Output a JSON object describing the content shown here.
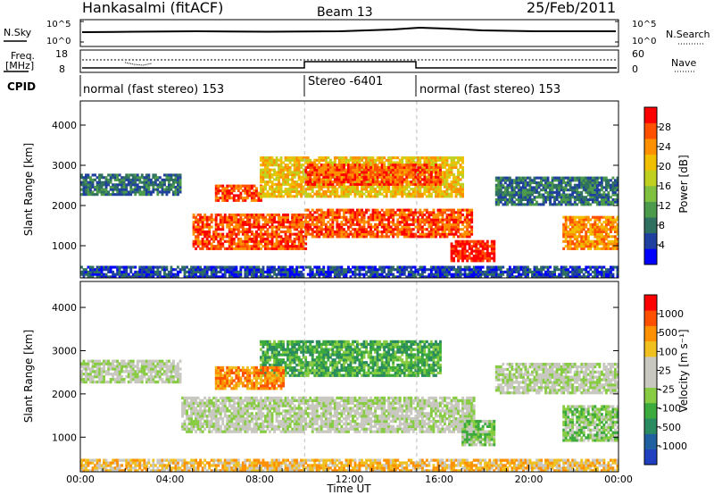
{
  "header": {
    "station": "Hankasalmi (fitACF)",
    "beam": "Beam 13",
    "date": "25/Feb/2011"
  },
  "top_panel": {
    "nsky_label": "N.Sky",
    "nsearch_label": "N.Search",
    "left_ticks": [
      "10^5",
      "10^0"
    ],
    "right_ticks": [
      "10^5",
      "10^0"
    ],
    "freq_label_1": "Freq.",
    "freq_label_2": "[MHz]",
    "freq_ticks": [
      "18",
      "8"
    ],
    "nave_label": "Nave",
    "nave_ticks": [
      "60",
      "0"
    ],
    "cpid_label": "CPID",
    "modes": [
      {
        "label": "normal (fast stereo) 153",
        "start": 0,
        "end": 10
      },
      {
        "label": "Stereo -6401",
        "start": 10,
        "end": 15
      },
      {
        "label": "normal (fast stereo) 153",
        "start": 15,
        "end": 24
      }
    ]
  },
  "chart_data": [
    {
      "type": "heatmap",
      "quantity": "Power",
      "ylabel": "Slant Range [km]",
      "ylim": [
        200,
        4600
      ],
      "yticks": [
        "1000",
        "2000",
        "3000",
        "4000"
      ],
      "xlim": [
        0,
        24
      ],
      "colorbar": {
        "label": "Power [dB]",
        "ticks": [
          "4",
          "8",
          "12",
          "16",
          "20",
          "24",
          "28"
        ],
        "colors": [
          "#0000ff",
          "#2040a0",
          "#307060",
          "#4c9a4c",
          "#80c040",
          "#c0d020",
          "#f0c000",
          "#ff9000",
          "#ff5000",
          "#ff0000"
        ]
      },
      "regions": [
        {
          "t0": 0,
          "t1": 4.5,
          "r0": 2250,
          "r1": 2750,
          "level": 2
        },
        {
          "t0": 5,
          "t1": 10,
          "r0": 900,
          "r1": 1800,
          "level": 8
        },
        {
          "t0": 10,
          "t1": 17.5,
          "r0": 1200,
          "r1": 1900,
          "level": 8
        },
        {
          "t0": 6,
          "t1": 8,
          "r0": 2100,
          "r1": 2500,
          "level": 8
        },
        {
          "t0": 8,
          "t1": 17,
          "r0": 2200,
          "r1": 3200,
          "level": 6
        },
        {
          "t0": 10,
          "t1": 16,
          "r0": 2500,
          "r1": 3000,
          "level": 8
        },
        {
          "t0": 16.5,
          "t1": 18.5,
          "r0": 600,
          "r1": 1100,
          "level": 9
        },
        {
          "t0": 18.5,
          "t1": 24,
          "r0": 2000,
          "r1": 2700,
          "level": 2
        },
        {
          "t0": 21.5,
          "t1": 24,
          "r0": 900,
          "r1": 1700,
          "level": 7
        },
        {
          "t0": 0,
          "t1": 24,
          "r0": 200,
          "r1": 450,
          "level": 1
        }
      ]
    },
    {
      "type": "heatmap",
      "quantity": "Velocity",
      "ylabel": "Slant Range [km]",
      "ylim": [
        200,
        4600
      ],
      "yticks": [
        "1000",
        "2000",
        "3000",
        "4000"
      ],
      "xlim": [
        0,
        24
      ],
      "xticks": [
        "00:00",
        "04:00",
        "08:00",
        "12:00",
        "16:00",
        "20:00",
        "00:00"
      ],
      "xlabel": "Time UT",
      "colorbar": {
        "label": "Velocity [m s⁻¹]",
        "ticks": [
          "1000",
          "500",
          "100",
          "25",
          "-25",
          "-100",
          "-500",
          "-1000"
        ],
        "colors": [
          "#2040c0",
          "#2060a0",
          "#2a8a60",
          "#3caa3c",
          "#88cc44",
          "#c8c8c0",
          "#c8c8c0",
          "#f0c020",
          "#ff9000",
          "#ff5000",
          "#ff0000"
        ]
      },
      "regions": [
        {
          "t0": 0,
          "t1": 4.5,
          "r0": 2250,
          "r1": 2750,
          "level": 5
        },
        {
          "t0": 4.5,
          "t1": 17.5,
          "r0": 1100,
          "r1": 1900,
          "level": 5
        },
        {
          "t0": 8,
          "t1": 16,
          "r0": 2400,
          "r1": 3200,
          "level": 3
        },
        {
          "t0": 6,
          "t1": 9,
          "r0": 2100,
          "r1": 2600,
          "level": 8
        },
        {
          "t0": 17,
          "t1": 18.5,
          "r0": 800,
          "r1": 1400,
          "level": 4
        },
        {
          "t0": 18.5,
          "t1": 24,
          "r0": 2000,
          "r1": 2700,
          "level": 5
        },
        {
          "t0": 21.5,
          "t1": 24,
          "r0": 900,
          "r1": 1700,
          "level": 4
        },
        {
          "t0": 0,
          "t1": 24,
          "r0": 200,
          "r1": 450,
          "level": 7
        }
      ]
    }
  ]
}
